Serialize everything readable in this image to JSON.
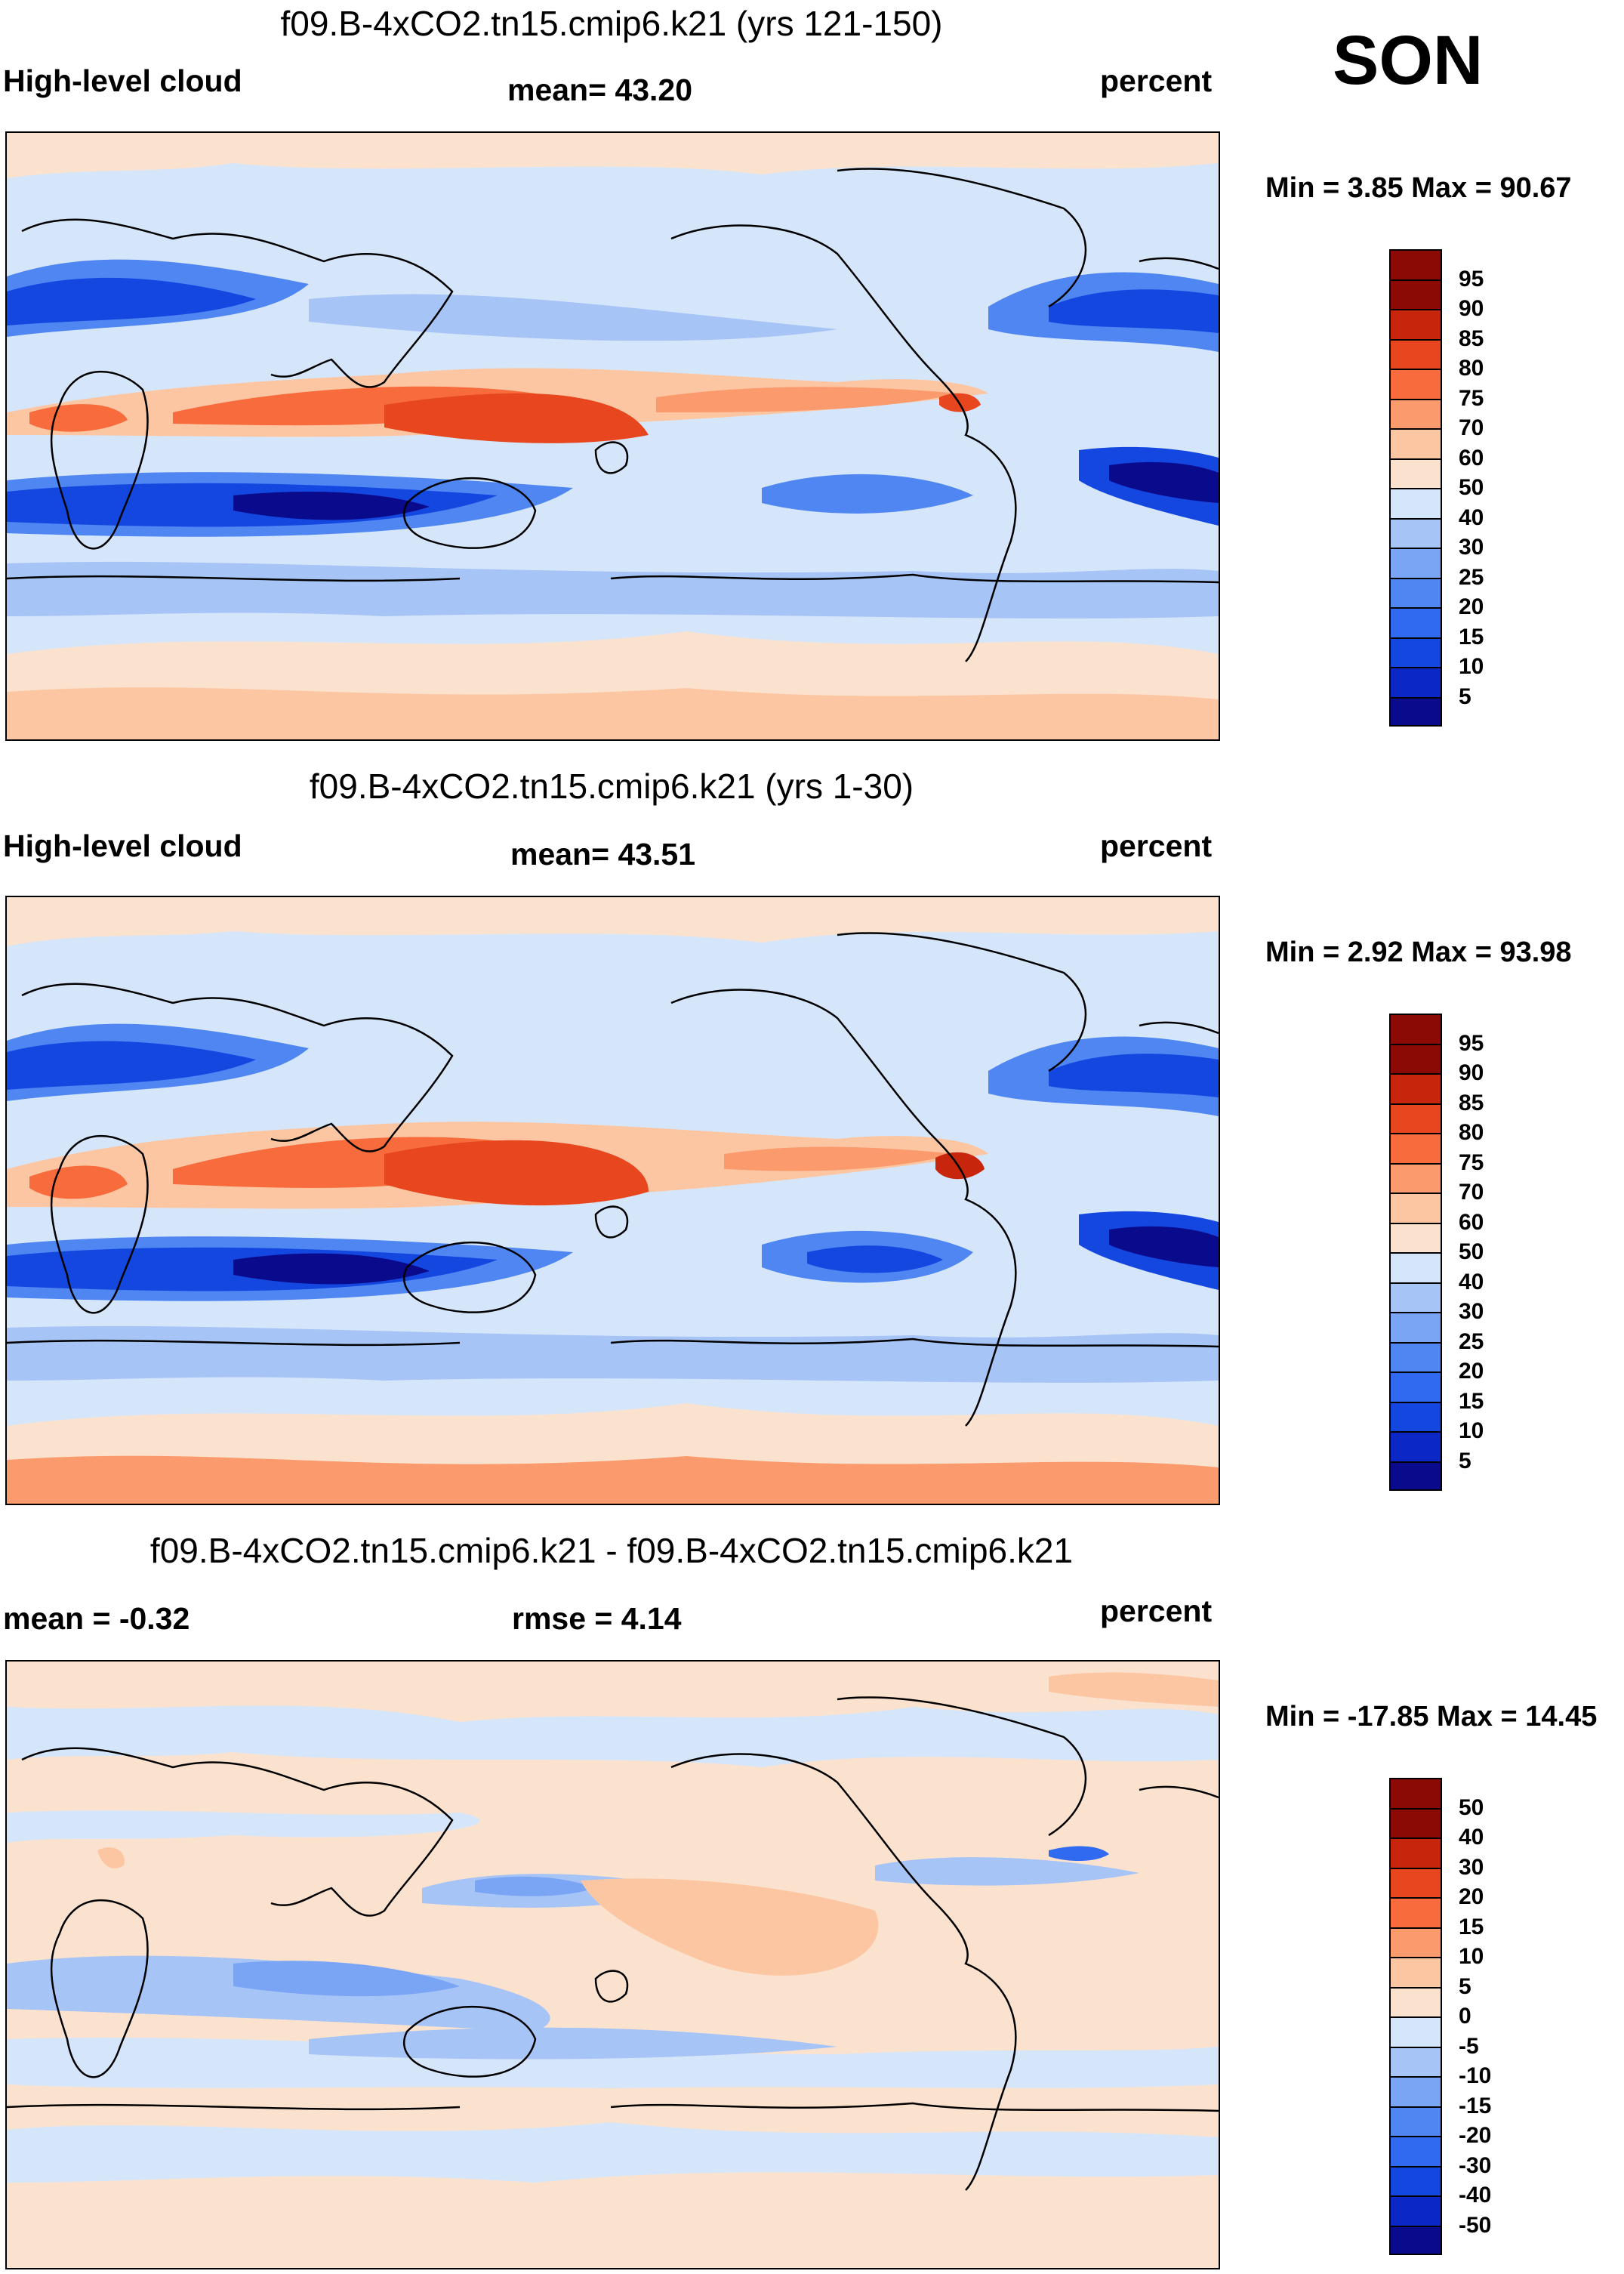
{
  "season": "SON",
  "colors": {
    "seq": [
      "#0a0a8c",
      "#0b27c6",
      "#1447e0",
      "#2f6af0",
      "#4f86f2",
      "#7aa4f4",
      "#a6c4f6",
      "#d6e6fa",
      "#fbe2cf",
      "#fcc6a3",
      "#fb9a6c",
      "#f76b3c",
      "#e8461f",
      "#c8250d",
      "#8c0a05"
    ],
    "diff": [
      "#0a0a8c",
      "#0b27c6",
      "#1447e0",
      "#2f6af0",
      "#4f86f2",
      "#7aa4f4",
      "#a6c4f6",
      "#d6e6fa",
      "#fbe2cf",
      "#fcc6a3",
      "#fb9a6c",
      "#f76b3c",
      "#e8461f",
      "#c8250d",
      "#8c0a05"
    ]
  },
  "panels": [
    {
      "title": "f09.B-4xCO2.tn15.cmip6.k21 (yrs 121-150)",
      "left_label": "High-level cloud",
      "center_label": "mean=  43.20",
      "right_label": "percent",
      "minmax": "Min =   3.85 Max =  90.67",
      "colorbar_labels": [
        "95",
        "90",
        "85",
        "80",
        "75",
        "70",
        "60",
        "50",
        "40",
        "30",
        "25",
        "20",
        "15",
        "10",
        "5"
      ]
    },
    {
      "title": "f09.B-4xCO2.tn15.cmip6.k21 (yrs 1-30)",
      "left_label": "High-level cloud",
      "center_label": "mean=  43.51",
      "right_label": "percent",
      "minmax": "Min =   2.92 Max =  93.98",
      "colorbar_labels": [
        "95",
        "90",
        "85",
        "80",
        "75",
        "70",
        "60",
        "50",
        "40",
        "30",
        "25",
        "20",
        "15",
        "10",
        "5"
      ]
    },
    {
      "title": "f09.B-4xCO2.tn15.cmip6.k21 - f09.B-4xCO2.tn15.cmip6.k21",
      "left_label": "mean =  -0.32",
      "center_label": "rmse =    4.14",
      "right_label": "percent",
      "minmax": "Min = -17.85 Max =  14.45",
      "colorbar_labels": [
        "50",
        "40",
        "30",
        "20",
        "15",
        "10",
        "5",
        "0",
        "-5",
        "-10",
        "-15",
        "-20",
        "-30",
        "-40",
        "-50"
      ]
    }
  ]
}
